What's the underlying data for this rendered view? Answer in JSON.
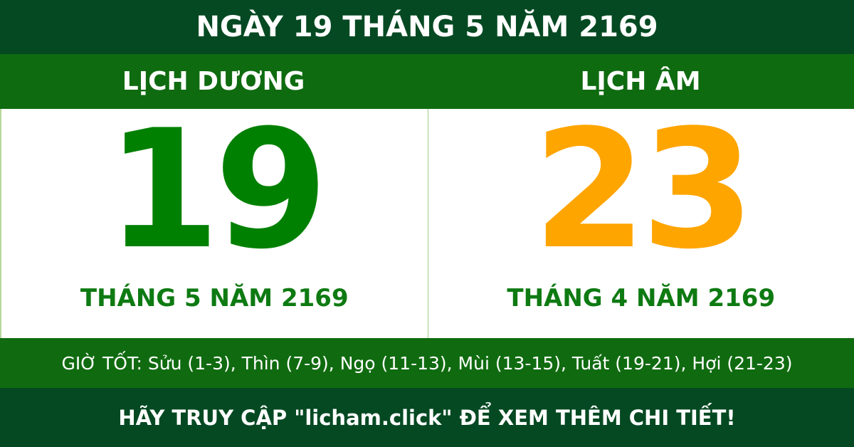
{
  "title": "NGÀY 19 THÁNG 5 NĂM 2169",
  "solar": {
    "label": "LỊCH DƯƠNG",
    "day": "19",
    "month_year": "THÁNG 5 NĂM 2169"
  },
  "lunar": {
    "label": "LỊCH ÂM",
    "day": "23",
    "month_year": "THÁNG 4 NĂM 2169"
  },
  "good_hours": "GIỜ TỐT: Sửu (1-3), Thìn (7-9), Ngọ (11-13), Mùi (13-15), Tuất (19-21), Hợi (21-23)",
  "footer": "HÃY TRUY CẬP \"licham.click\" ĐỂ XEM THÊM CHI TIẾT!",
  "colors": {
    "dark_green": "#044922",
    "green": "#0f6b10",
    "solar_day": "#008000",
    "lunar_day": "#ffa500"
  }
}
